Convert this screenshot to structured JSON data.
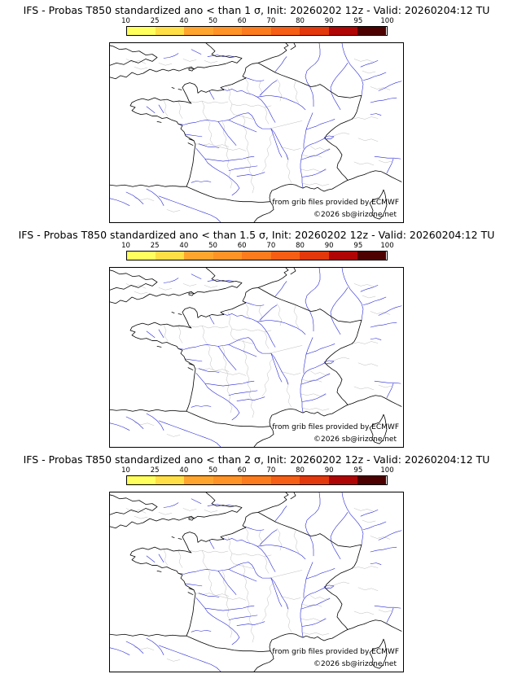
{
  "page": {
    "background": "#ffffff"
  },
  "colorbar": {
    "ticks": [
      "10",
      "25",
      "40",
      "50",
      "60",
      "70",
      "80",
      "90",
      "95",
      "100"
    ],
    "colors": [
      "#ffff5e",
      "#ffdf45",
      "#ffa52e",
      "#ff9326",
      "#fb7b1d",
      "#f55e14",
      "#e3380b",
      "#b00505",
      "#4d0101"
    ]
  },
  "credits": {
    "line1": "from grib files provided by ECMWF",
    "line2": "©2026 sb@irizone.net"
  },
  "panels": [
    {
      "title": "IFS - Probas T850  standardized ano < than 1 σ, Init: 20260202 12z - Valid: 20260204:12 TU"
    },
    {
      "title": "IFS - Probas T850  standardized ano < than 1.5 σ, Init: 20260202 12z - Valid: 20260204:12 TU"
    },
    {
      "title": "IFS - Probas T850  standardized ano < than 2 σ, Init: 20260202 12z - Valid: 20260204:12 TU"
    }
  ],
  "map": {
    "region": "France",
    "coast_color": "#000000",
    "river_color": "#2929d6",
    "admin_color": "#bdbdbd"
  }
}
